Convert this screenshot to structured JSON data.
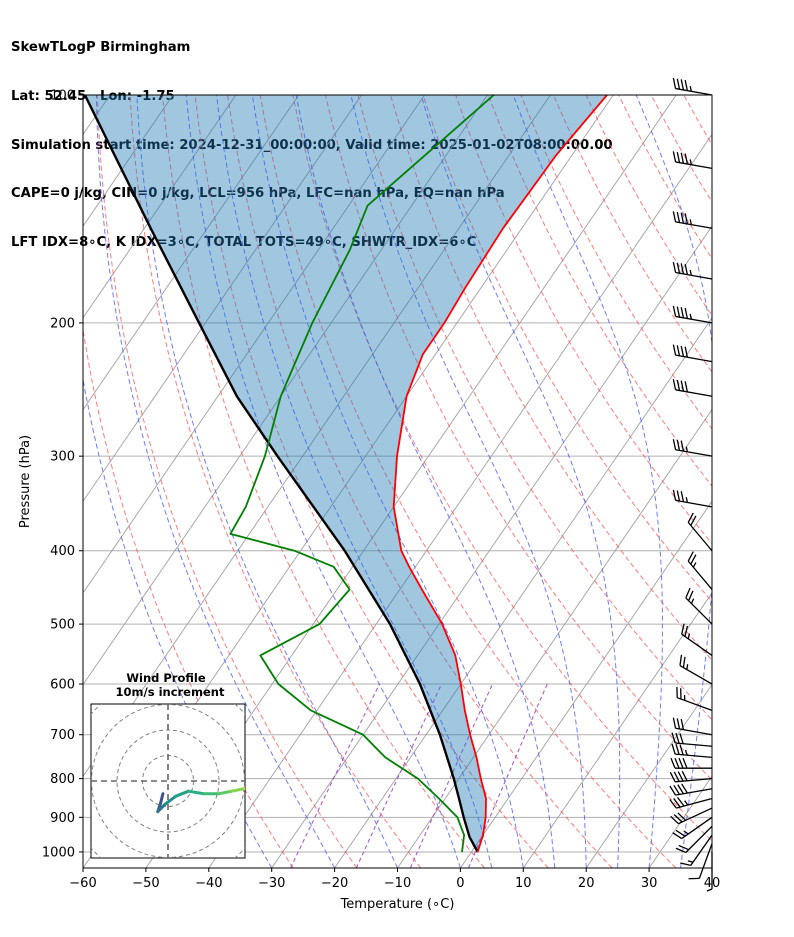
{
  "header": {
    "line1": "SkewTLogP Birmingham",
    "line2": "Lat: 52.45   Lon: -1.75",
    "line3": "Simulation start time: 2024-12-31_00:00:00, Valid time: 2025-01-02T08:00:00.00",
    "line4": "CAPE=0 j/kg, CIN=0 j/kg, LCL=956 hPa, LFC=nan hPa, EQ=nan hPa",
    "line5": "LFT IDX=8∘C, K IDX=3∘C, TOTAL TOTS=49∘C, SHWTR_IDX=6∘C"
  },
  "chart_data": {
    "type": "line",
    "xlabel": "Temperature (∘C)",
    "ylabel": "Pressure (hPa)",
    "xlim": [
      -60,
      40
    ],
    "ylim": [
      1050,
      100
    ],
    "y_scale": "log",
    "grid": true,
    "x_ticks": [
      -60,
      -50,
      -40,
      -30,
      -20,
      -10,
      0,
      10,
      20,
      30,
      40
    ],
    "y_ticks": [
      100,
      200,
      300,
      400,
      500,
      600,
      700,
      800,
      900,
      1000
    ],
    "x_tick_labels": [
      "−60",
      "−50",
      "−40",
      "−30",
      "−20",
      "−10",
      "0",
      "10",
      "20",
      "30",
      "40"
    ],
    "y_tick_labels": [
      "100",
      "200",
      "300",
      "400",
      "500",
      "600",
      "700",
      "800",
      "900",
      "1000"
    ],
    "series": [
      {
        "color": "#ff0000",
        "pressure": [
          1000,
          950,
          900,
          850,
          800,
          750,
          700,
          650,
          600,
          550,
          500,
          450,
          420,
          400,
          350,
          300,
          250,
          220,
          200,
          180,
          150,
          120,
          100
        ],
        "values": [
          1.0,
          0.0,
          -1.5,
          -3.5,
          -6.5,
          -9.5,
          -13.0,
          -16.5,
          -20.0,
          -24.0,
          -29.5,
          -36.5,
          -41.0,
          -44.0,
          -50.0,
          -55.0,
          -60.0,
          -62.0,
          -62.0,
          -62.5,
          -63.0,
          -62.5,
          -61.0
        ]
      },
      {
        "color": "#008000",
        "pressure": [
          1000,
          950,
          900,
          850,
          800,
          750,
          700,
          650,
          600,
          550,
          500,
          450,
          420,
          400,
          380,
          350,
          300,
          250,
          200,
          160,
          140,
          100
        ],
        "values": [
          -1.5,
          -3.0,
          -6.0,
          -11.0,
          -16.5,
          -24.0,
          -30.0,
          -41.0,
          -49.0,
          -55.0,
          -49.0,
          -48.0,
          -53.0,
          -61.0,
          -73.0,
          -73.5,
          -76.0,
          -80.0,
          -83.0,
          -85.0,
          -87.0,
          -79.0
        ]
      },
      {
        "color": "#000000",
        "pressure": [
          1000,
          956,
          900,
          850,
          800,
          700,
          600,
          500,
          400,
          300,
          250,
          200,
          150,
          100
        ],
        "values": [
          1.0,
          -1.9,
          -5.0,
          -7.8,
          -10.8,
          -17.8,
          -26.5,
          -37.8,
          -53.0,
          -74.0,
          -87.0,
          -101.0,
          -119.0,
          -144.0
        ]
      }
    ],
    "wind_barbs": {
      "pressure": [
        1000,
        975,
        950,
        925,
        900,
        875,
        850,
        825,
        800,
        775,
        750,
        725,
        700,
        650,
        600,
        550,
        500,
        450,
        400,
        350,
        300,
        250,
        225,
        200,
        175,
        150,
        125,
        100
      ],
      "speed_kt": [
        5,
        10,
        15,
        20,
        25,
        30,
        35,
        40,
        40,
        40,
        35,
        30,
        30,
        25,
        25,
        25,
        25,
        25,
        20,
        35,
        35,
        40,
        40,
        45,
        45,
        45,
        45,
        45
      ],
      "direction_deg": [
        180,
        200,
        215,
        225,
        235,
        245,
        255,
        260,
        265,
        270,
        275,
        275,
        280,
        290,
        300,
        305,
        315,
        320,
        320,
        280,
        280,
        280,
        280,
        280,
        280,
        280,
        280,
        280
      ]
    },
    "hodograph": {
      "title": "Wind Profile",
      "subtitle": "10m/s increment",
      "ring_increment": 10,
      "u": [
        -2,
        -3,
        -4,
        -1,
        3,
        8,
        14,
        20,
        25,
        30,
        35,
        40,
        45
      ],
      "v": [
        -5,
        -9,
        -12,
        -9,
        -6,
        -4,
        -5,
        -5,
        -4,
        -3,
        -1,
        2,
        1
      ]
    }
  }
}
